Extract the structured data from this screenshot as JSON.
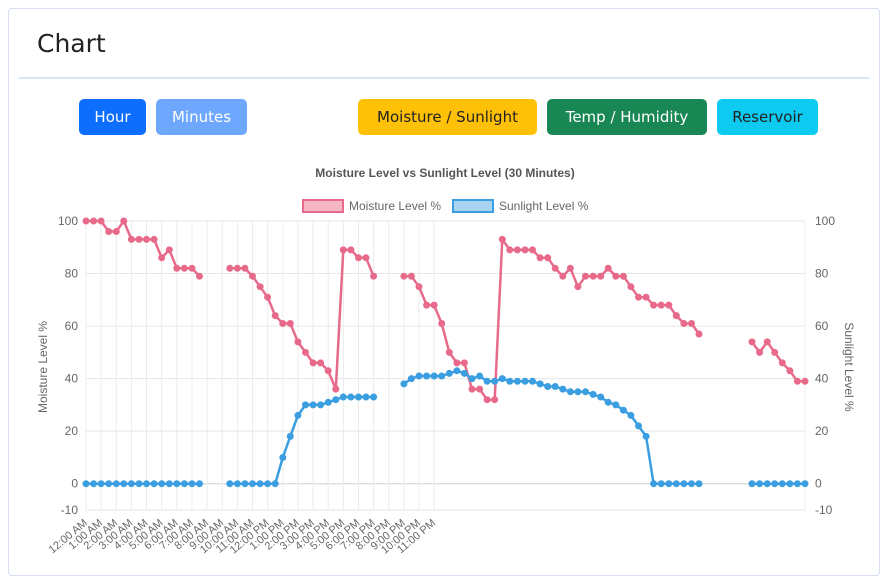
{
  "card": {
    "title": "Chart"
  },
  "buttons": {
    "hour": "Hour",
    "minutes": "Minutes",
    "moisture_sunlight": "Moisture / Sunlight",
    "temp_humidity": "Temp / Humidity",
    "reservoir": "Reservoir"
  },
  "colors": {
    "moisture": "#e86a8a",
    "sunlight": "#3b9ee0",
    "btn_hour": "#0d6efd",
    "btn_minutes": "#6ea8fe",
    "btn_moisture": "#ffc107",
    "btn_temp": "#198754",
    "btn_reservoir": "#0dcaf0"
  },
  "chart_data": {
    "type": "line",
    "title": "Moisture Level vs Sunlight Level (30 Minutes)",
    "ylabel": "Moisture Level %",
    "y2label": "Sunlight Level %",
    "ylim": [
      -10,
      100
    ],
    "yticks": [
      -10,
      0,
      20,
      40,
      60,
      80,
      100
    ],
    "grid": true,
    "legend_position": "top",
    "x_tick_labels": [
      "12:00 AM",
      "1:00 AM",
      "2:00 AM",
      "3:00 AM",
      "4:00 AM",
      "5:00 AM",
      "6:00 AM",
      "7:00 AM",
      "8:00 AM",
      "9:00 AM",
      "10:00 AM",
      "11:00 AM",
      "12:00 PM",
      "1:00 PM",
      "2:00 PM",
      "3:00 PM",
      "4:00 PM",
      "5:00 PM",
      "6:00 PM",
      "7:00 PM",
      "8:00 PM",
      "9:00 PM",
      "10:00 PM",
      "11:00 PM"
    ],
    "series": [
      {
        "name": "Moisture Level %",
        "values": [
          100,
          100,
          100,
          96,
          96,
          100,
          93,
          93,
          93,
          93,
          86,
          89,
          82,
          82,
          82,
          79,
          null,
          null,
          null,
          82,
          82,
          82,
          79,
          75,
          71,
          64,
          61,
          61,
          54,
          50,
          46,
          46,
          43,
          36,
          89,
          89,
          86,
          86,
          79,
          null,
          null,
          null,
          79,
          79,
          75,
          68,
          68,
          61,
          50,
          46,
          46,
          36,
          36,
          32,
          32,
          93,
          89,
          89,
          89,
          89,
          86,
          86,
          82,
          79,
          82,
          75,
          79,
          79,
          79,
          82,
          79,
          79,
          75,
          71,
          71,
          68,
          68,
          68,
          64,
          61,
          61,
          57,
          null,
          null,
          null,
          null,
          null,
          null,
          54,
          50,
          54,
          50,
          46,
          43,
          39,
          39
        ]
      },
      {
        "name": "Sunlight Level %",
        "values": [
          0,
          0,
          0,
          0,
          0,
          0,
          0,
          0,
          0,
          0,
          0,
          0,
          0,
          0,
          0,
          0,
          null,
          null,
          null,
          0,
          0,
          0,
          0,
          0,
          0,
          0,
          10,
          18,
          26,
          30,
          30,
          30,
          31,
          32,
          33,
          33,
          33,
          33,
          33,
          null,
          null,
          null,
          38,
          40,
          41,
          41,
          41,
          41,
          42,
          43,
          42,
          40,
          41,
          39,
          39,
          40,
          39,
          39,
          39,
          39,
          38,
          37,
          37,
          36,
          35,
          35,
          35,
          34,
          33,
          31,
          30,
          28,
          26,
          22,
          18,
          0,
          0,
          0,
          0,
          0,
          0,
          0,
          null,
          null,
          null,
          null,
          null,
          null,
          0,
          0,
          0,
          0,
          0,
          0,
          0,
          0
        ]
      }
    ]
  }
}
